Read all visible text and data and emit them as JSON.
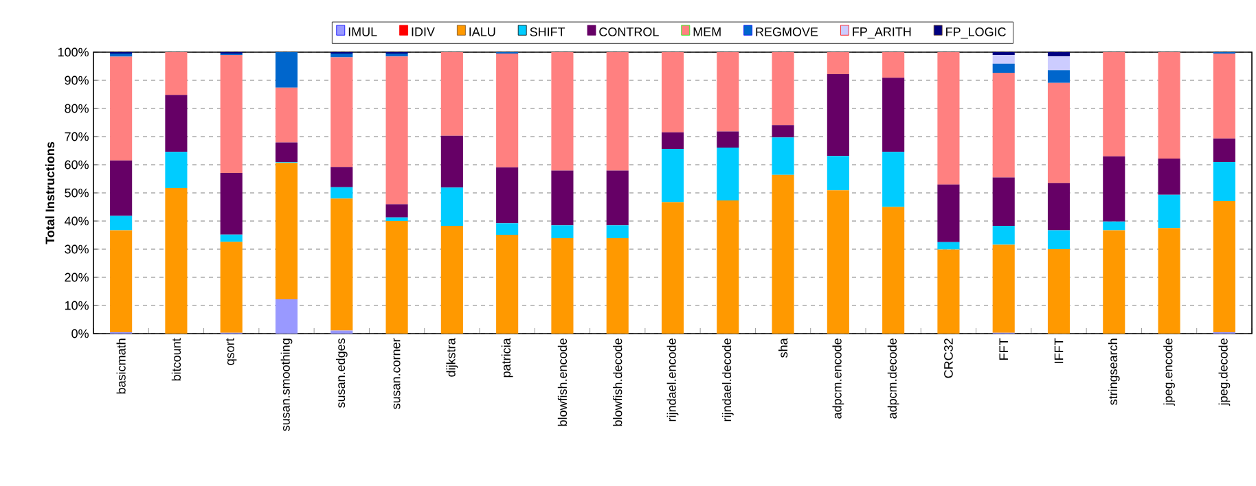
{
  "chart_data": {
    "type": "bar",
    "stacked": true,
    "ylabel": "Total Instructions",
    "categories": [
      "basicmath",
      "bitcount",
      "qsort",
      "susan.smoothing",
      "susan.edges",
      "susan.corner",
      "dijkstra",
      "patricia",
      "blowfish.encode",
      "blowfish.decode",
      "rijndael.encode",
      "rijndael.decode",
      "sha",
      "adpcm.encode",
      "adpcm.decode",
      "CRC32",
      "FFT",
      "IFFT",
      "stringsearch",
      "jpeg.encode",
      "jpeg.decode"
    ],
    "series": [
      {
        "name": "IMUL",
        "color": "#9999ff",
        "values": [
          0.5,
          0,
          0.3,
          12.2,
          1.1,
          0,
          0,
          0,
          0,
          0,
          0,
          0,
          0,
          0,
          0,
          0,
          0.3,
          0,
          0,
          0,
          0.5
        ]
      },
      {
        "name": "IDIV",
        "color": "#ff0000",
        "values": [
          0,
          0,
          0,
          0,
          0,
          0,
          0,
          0,
          0,
          0,
          0,
          0,
          0,
          0,
          0,
          0,
          0,
          0,
          0,
          0,
          0
        ]
      },
      {
        "name": "IALU",
        "color": "#ff9900",
        "values": [
          36.2,
          51.7,
          32.3,
          48.5,
          46.9,
          40.0,
          38.3,
          35.1,
          33.9,
          33.9,
          46.7,
          47.3,
          56.4,
          50.9,
          45.0,
          29.9,
          31.3,
          30.0,
          36.7,
          37.5,
          46.6
        ]
      },
      {
        "name": "SHIFT",
        "color": "#00ccff",
        "values": [
          5.1,
          12.9,
          2.6,
          0.2,
          4.0,
          1.3,
          13.6,
          4.1,
          4.6,
          4.6,
          18.9,
          18.8,
          13.3,
          12.2,
          19.6,
          2.6,
          6.7,
          6.7,
          3.1,
          11.8,
          13.9
        ]
      },
      {
        "name": "CONTROL",
        "color": "#660066",
        "values": [
          19.7,
          20.2,
          21.9,
          7.0,
          7.2,
          4.7,
          18.4,
          19.9,
          19.4,
          19.4,
          5.9,
          5.7,
          4.4,
          29.1,
          26.3,
          20.5,
          17.2,
          16.8,
          23.2,
          12.9,
          8.3
        ]
      },
      {
        "name": "MEM",
        "color": "#ff8080",
        "values": [
          36.9,
          15.2,
          41.9,
          19.5,
          39.0,
          52.5,
          29.7,
          40.4,
          42.1,
          42.1,
          28.5,
          28.2,
          25.9,
          7.8,
          9.1,
          47.0,
          37.2,
          35.6,
          37.0,
          37.8,
          30.2
        ]
      },
      {
        "name": "REGMOVE",
        "color": "#0066cc",
        "values": [
          1.1,
          0,
          0.5,
          12.6,
          1.3,
          1.0,
          0,
          0.5,
          0,
          0,
          0,
          0,
          0,
          0,
          0,
          0,
          3.2,
          4.5,
          0,
          0,
          0.5
        ]
      },
      {
        "name": "FP_ARITH",
        "color": "#ccccff",
        "values": [
          0,
          0,
          0,
          0,
          0,
          0,
          0,
          0,
          0,
          0,
          0,
          0,
          0,
          0,
          0,
          0,
          3.1,
          4.9,
          0,
          0,
          0
        ]
      },
      {
        "name": "FP_LOGIC",
        "color": "#000080",
        "values": [
          0.5,
          0,
          0.5,
          0,
          0.5,
          0.5,
          0,
          0,
          0,
          0,
          0,
          0,
          0,
          0,
          0,
          0,
          1.0,
          1.5,
          0,
          0,
          0
        ]
      }
    ],
    "ylim": [
      0,
      100
    ],
    "yticks": [
      {
        "value": 0,
        "label": "0%"
      },
      {
        "value": 10,
        "label": "10%"
      },
      {
        "value": 20,
        "label": "20%"
      },
      {
        "value": 30,
        "label": "30%"
      },
      {
        "value": 40,
        "label": "40%"
      },
      {
        "value": 50,
        "label": "50%"
      },
      {
        "value": 60,
        "label": "60%"
      },
      {
        "value": 70,
        "label": "70%"
      },
      {
        "value": 80,
        "label": "80%"
      },
      {
        "value": 90,
        "label": "90%"
      },
      {
        "value": 100,
        "label": "100%"
      }
    ],
    "grid": "y",
    "legend": "top"
  }
}
